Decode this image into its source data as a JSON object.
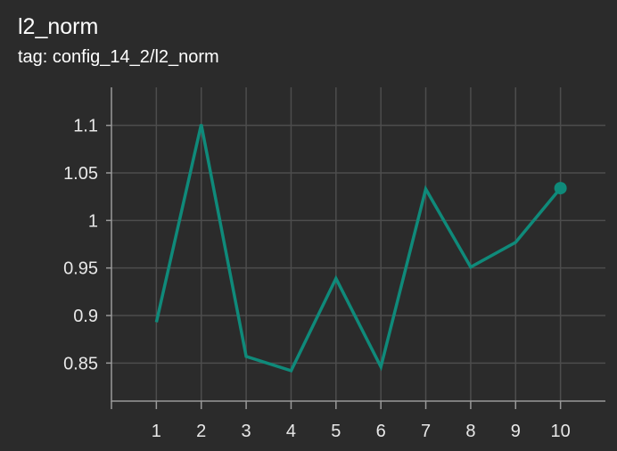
{
  "header": {
    "title": "l2_norm",
    "tag": "tag: config_14_2/l2_norm"
  },
  "colors": {
    "background": "#2b2b2b",
    "grid": "#4d4d4d",
    "axis": "#9a9a9a",
    "series": "#0f8a7a",
    "text": "#e8e8e8"
  },
  "chart_data": {
    "type": "line",
    "title": "l2_norm",
    "subtitle": "tag: config_14_2/l2_norm",
    "x": [
      1,
      2,
      3,
      4,
      5,
      6,
      7,
      8,
      9,
      10
    ],
    "x_tick_labels": [
      "1",
      "2",
      "3",
      "4",
      "5",
      "6",
      "7",
      "8",
      "9",
      "10"
    ],
    "y_ticks": [
      0.85,
      0.9,
      0.95,
      1,
      1.05,
      1.1
    ],
    "y_tick_labels": [
      "0.85",
      "0.9",
      "0.95",
      "1",
      "1.05",
      "1.1"
    ],
    "series": [
      {
        "values": [
          0.893,
          1.101,
          0.857,
          0.842,
          0.939,
          0.846,
          1.033,
          0.951,
          0.977,
          1.034
        ],
        "last_point_marker": true
      }
    ],
    "xlim": [
      0,
      11
    ],
    "ylim": [
      0.81,
      1.14
    ],
    "grid": true,
    "legend": "none"
  }
}
